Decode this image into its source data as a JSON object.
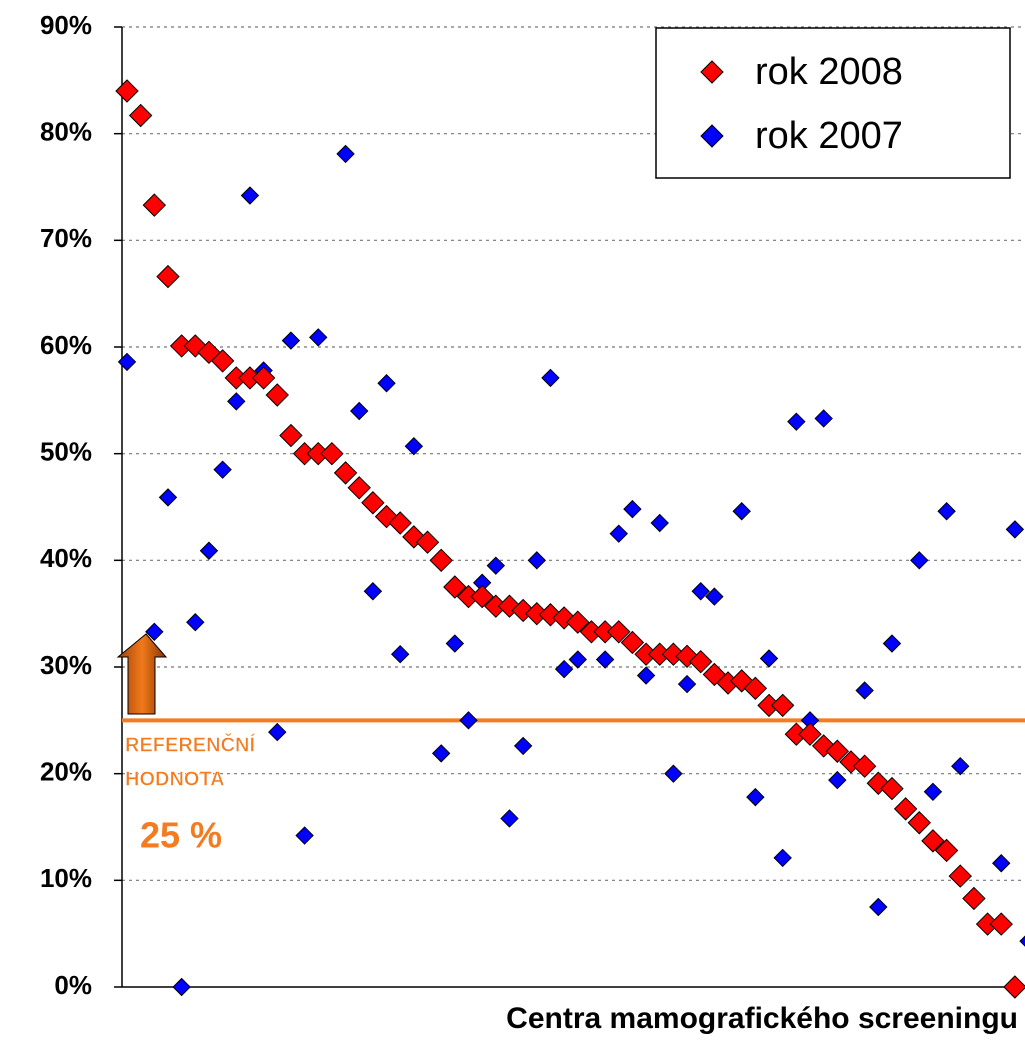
{
  "chart_data": {
    "type": "scatter",
    "categories": [
      null,
      null,
      null,
      null,
      null,
      null,
      null,
      null,
      null,
      null,
      null,
      null,
      null,
      null,
      null,
      null,
      null,
      null,
      null,
      null,
      null,
      null,
      null,
      null,
      null,
      null,
      null,
      null,
      null,
      null,
      null,
      null,
      null,
      null,
      null,
      null,
      null,
      null,
      null,
      null,
      null,
      null,
      null,
      null,
      null,
      null,
      null,
      null,
      null,
      null,
      null,
      null,
      null,
      null,
      null,
      null,
      null,
      null,
      null,
      null,
      null,
      null,
      null,
      null,
      null,
      null,
      null
    ],
    "series": [
      {
        "name": "rok 2008",
        "color": "#ff0000",
        "values": [
          84.0,
          81.7,
          73.3,
          66.6,
          60.1,
          60.1,
          59.5,
          58.7,
          57.1,
          57.1,
          57.1,
          55.5,
          51.7,
          50.0,
          50.0,
          50.0,
          48.2,
          46.8,
          45.4,
          44.1,
          43.5,
          42.2,
          41.7,
          40.0,
          37.5,
          36.6,
          36.6,
          35.7,
          35.7,
          35.3,
          35.0,
          34.9,
          34.6,
          34.2,
          33.3,
          33.3,
          33.3,
          32.3,
          31.2,
          31.2,
          31.2,
          31.0,
          30.5,
          29.3,
          28.5,
          28.7,
          28.0,
          26.4,
          26.4,
          23.7,
          23.7,
          22.6,
          22.1,
          21.1,
          20.7,
          19.1,
          18.6,
          16.7,
          15.4,
          13.7,
          12.8,
          10.4,
          8.3,
          5.9,
          5.9,
          0,
          null
        ]
      },
      {
        "name": "rok 2007",
        "color": "#0000ff",
        "values": [
          58.6,
          null,
          33.3,
          45.9,
          0,
          34.2,
          40.9,
          48.5,
          54.9,
          74.2,
          57.8,
          23.9,
          60.6,
          14.2,
          60.9,
          null,
          78.1,
          54.0,
          37.1,
          56.6,
          31.2,
          50.7,
          null,
          21.9,
          32.2,
          25.0,
          37.9,
          39.5,
          15.8,
          22.6,
          40.0,
          57.1,
          29.8,
          30.7,
          33.3,
          30.7,
          42.5,
          44.8,
          29.2,
          43.5,
          20.0,
          28.4,
          37.1,
          36.6,
          null,
          44.6,
          17.8,
          30.8,
          12.1,
          53.0,
          25.0,
          53.3,
          19.4,
          null,
          27.8,
          7.5,
          32.2,
          null,
          40.0,
          18.3,
          44.6,
          20.7,
          null,
          null,
          11.6,
          42.9,
          4.3
        ]
      }
    ],
    "ylim": [
      0,
      90
    ],
    "yticks": [
      {
        "value": 0,
        "label": "0%"
      },
      {
        "value": 10,
        "label": "10%"
      },
      {
        "value": 20,
        "label": "20%"
      },
      {
        "value": 30,
        "label": "30%"
      },
      {
        "value": 40,
        "label": "40%"
      },
      {
        "value": 50,
        "label": "50%"
      },
      {
        "value": 60,
        "label": "60%"
      },
      {
        "value": 70,
        "label": "70%"
      },
      {
        "value": 80,
        "label": "80%"
      },
      {
        "value": 90,
        "label": "90%"
      }
    ],
    "grid": true,
    "legend": "top-right",
    "x_label": "Centra mamografického screeningu",
    "reference_line": {
      "value": 25,
      "color": "#f47b20",
      "label_lines": [
        "REFERENČNÍ",
        "HODNOTA"
      ],
      "value_label": "25 %"
    }
  }
}
